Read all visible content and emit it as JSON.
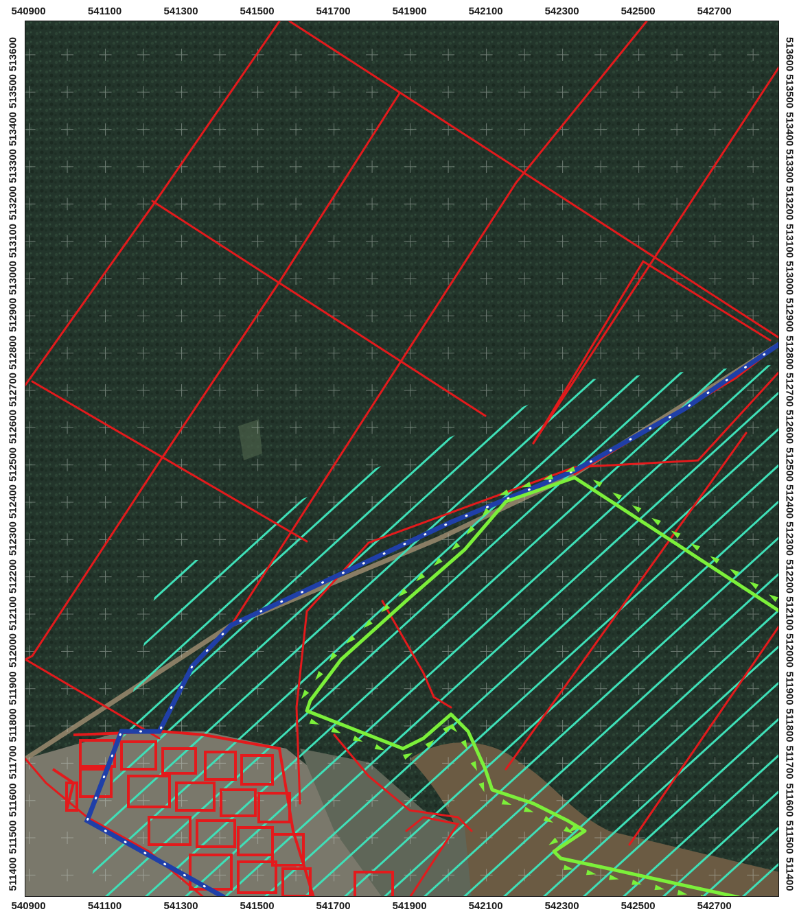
{
  "map": {
    "x_ticks": [
      "540900",
      "541100",
      "541300",
      "541500",
      "541700",
      "541900",
      "542100",
      "542300",
      "542500",
      "542700"
    ],
    "y_ticks": [
      "513600",
      "513500",
      "513400",
      "513300",
      "513200",
      "513100",
      "513000",
      "512900",
      "512800",
      "512700",
      "512600",
      "512500",
      "512400",
      "512300",
      "512200",
      "512100",
      "512000",
      "511900",
      "511800",
      "511700",
      "511600",
      "511500",
      "511400"
    ],
    "x_range": [
      540890,
      542870
    ],
    "y_range": [
      511340,
      513690
    ],
    "colors": {
      "forest": "#23352b",
      "forest_light": "#2e4536",
      "road": "#8c7b63",
      "water": "#6b5b43",
      "settlement": "#7d7a6c",
      "parcel_lines": "#e31a1c",
      "boundary_blue": "#1f3fa8",
      "hatch": "#3fe0b8",
      "zone_green": "#7cf03a",
      "grid_cross": "#c9d2cc"
    }
  }
}
